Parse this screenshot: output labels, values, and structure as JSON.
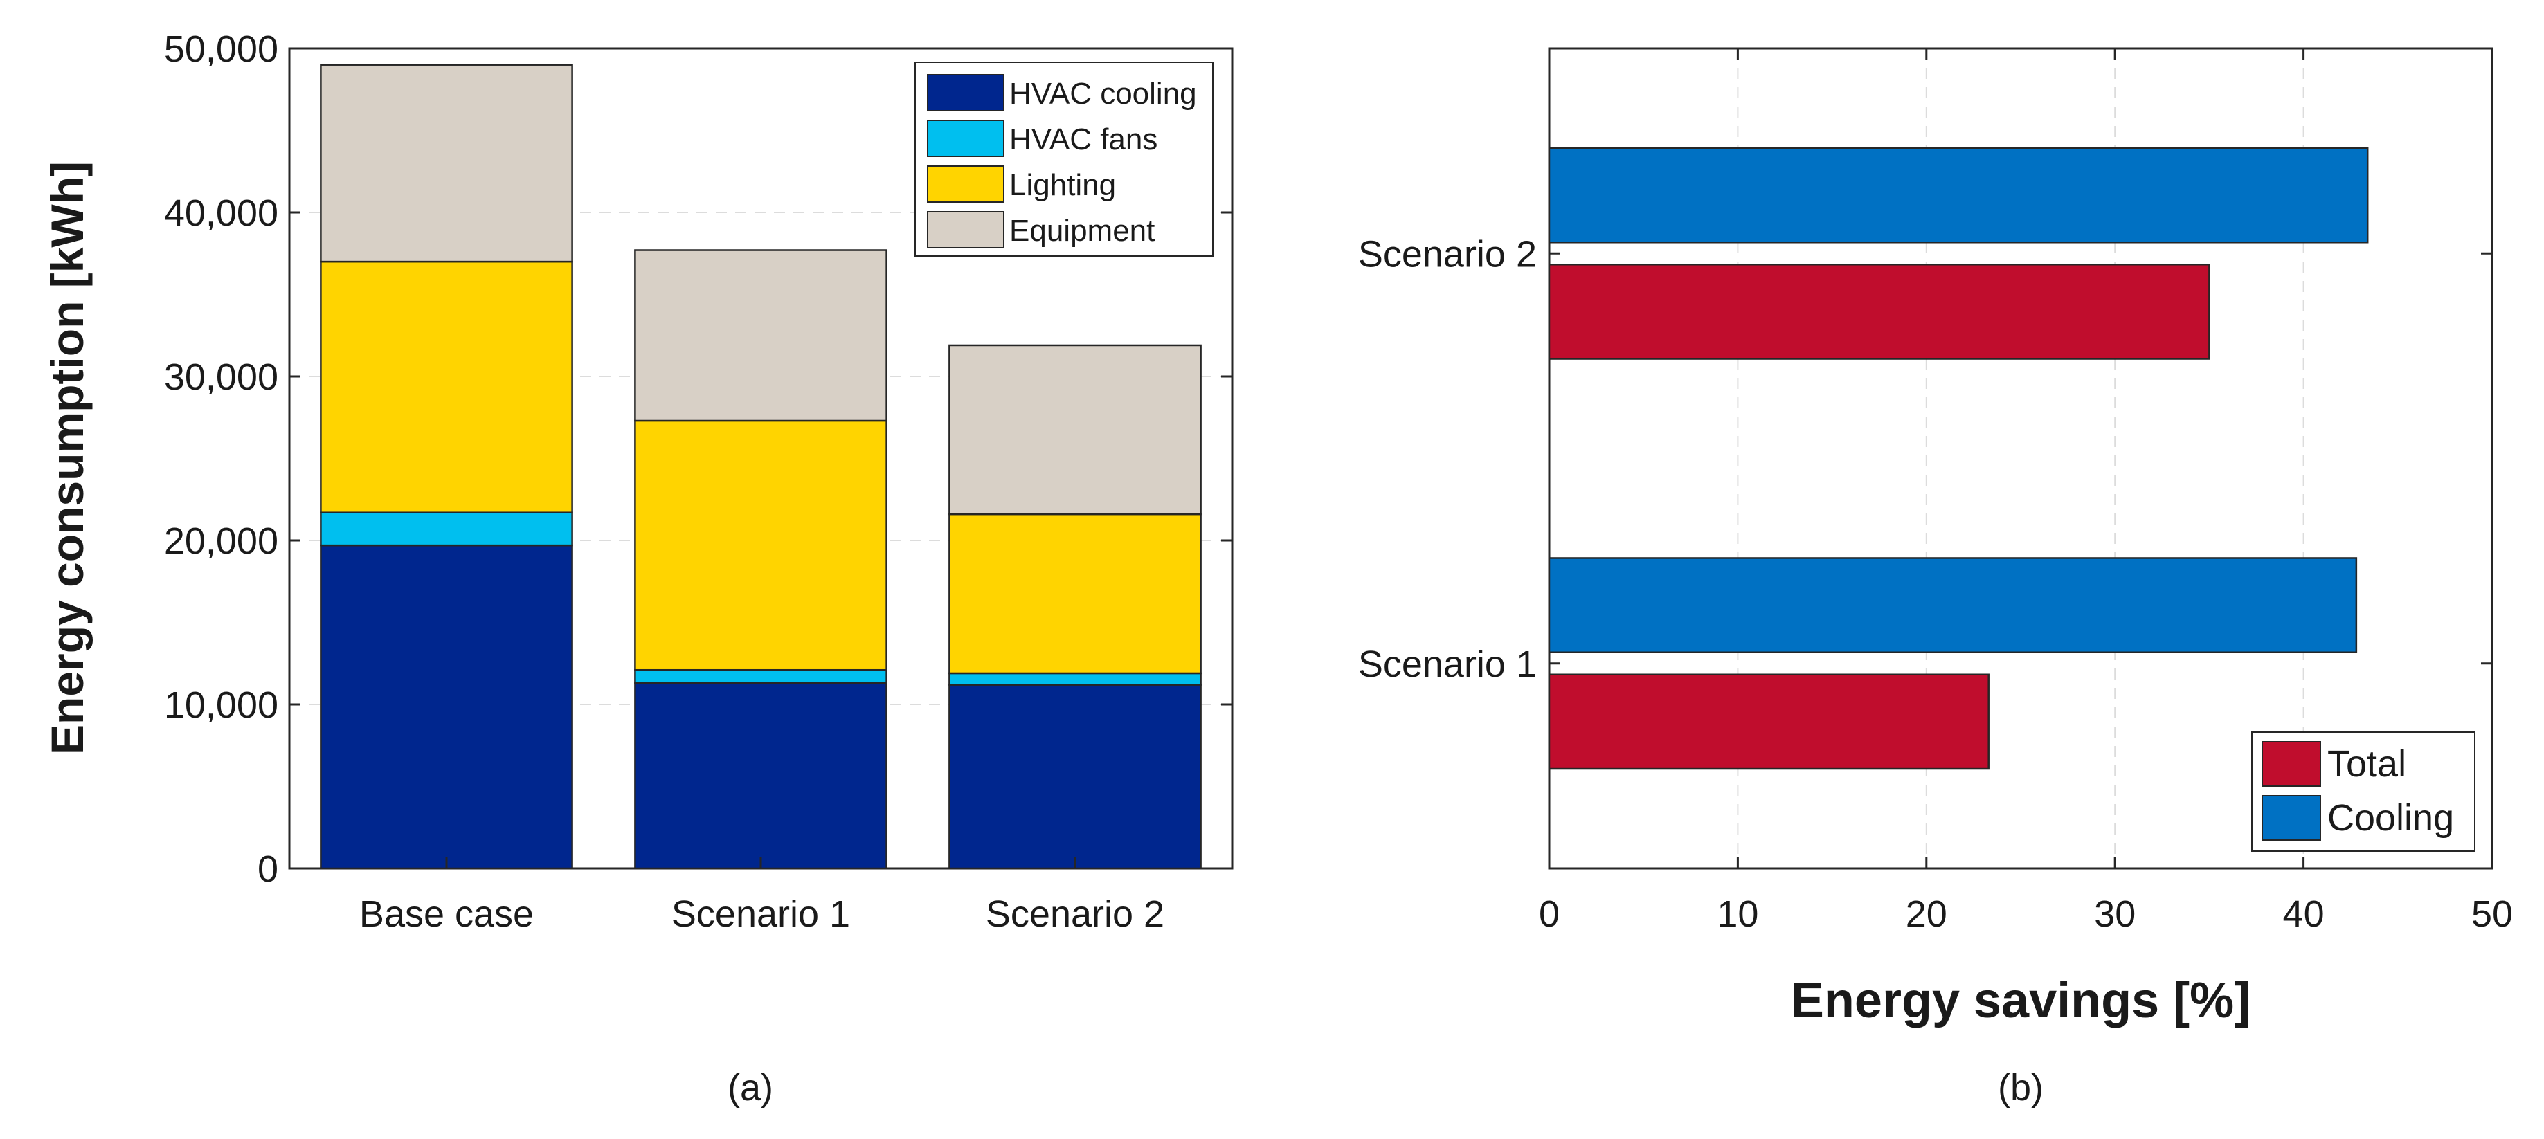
{
  "chart_data": [
    {
      "type": "bar",
      "stacked": true,
      "panel_label": "(a)",
      "title": "",
      "xlabel": "",
      "ylabel": "Energy consumption [kWh]",
      "ylim": [
        0,
        50000
      ],
      "yticks": [
        0,
        10000,
        20000,
        30000,
        40000,
        50000
      ],
      "ytick_labels": [
        "0",
        "10,000",
        "20,000",
        "30,000",
        "40,000",
        "50,000"
      ],
      "categories": [
        "Base case",
        "Scenario 1",
        "Scenario 2"
      ],
      "series": [
        {
          "name": "HVAC cooling",
          "color": "#00268e",
          "values": [
            19700,
            11300,
            11200
          ]
        },
        {
          "name": "HVAC fans",
          "color": "#00bfef",
          "values": [
            2000,
            800,
            700
          ]
        },
        {
          "name": "Lighting",
          "color": "#ffd400",
          "values": [
            15300,
            15200,
            9700
          ]
        },
        {
          "name": "Equipment",
          "color": "#d8d0c6",
          "values": [
            12000,
            10400,
            10300
          ]
        }
      ],
      "legend_position": "top-right",
      "grid": true
    },
    {
      "type": "bar",
      "orientation": "horizontal",
      "panel_label": "(b)",
      "title": "",
      "xlabel": "Energy savings [%]",
      "ylabel": "",
      "xlim": [
        0,
        50
      ],
      "xticks": [
        0,
        10,
        20,
        30,
        40,
        50
      ],
      "xtick_labels": [
        "0",
        "10",
        "20",
        "30",
        "40",
        "50"
      ],
      "categories": [
        "Scenario 1",
        "Scenario 2"
      ],
      "series": [
        {
          "name": "Total",
          "color": "#c00d2d",
          "values": [
            23.3,
            35.0
          ]
        },
        {
          "name": "Cooling",
          "color": "#0071c3",
          "values": [
            42.8,
            43.4
          ]
        }
      ],
      "legend_position": "bottom-right",
      "grid": true
    }
  ]
}
